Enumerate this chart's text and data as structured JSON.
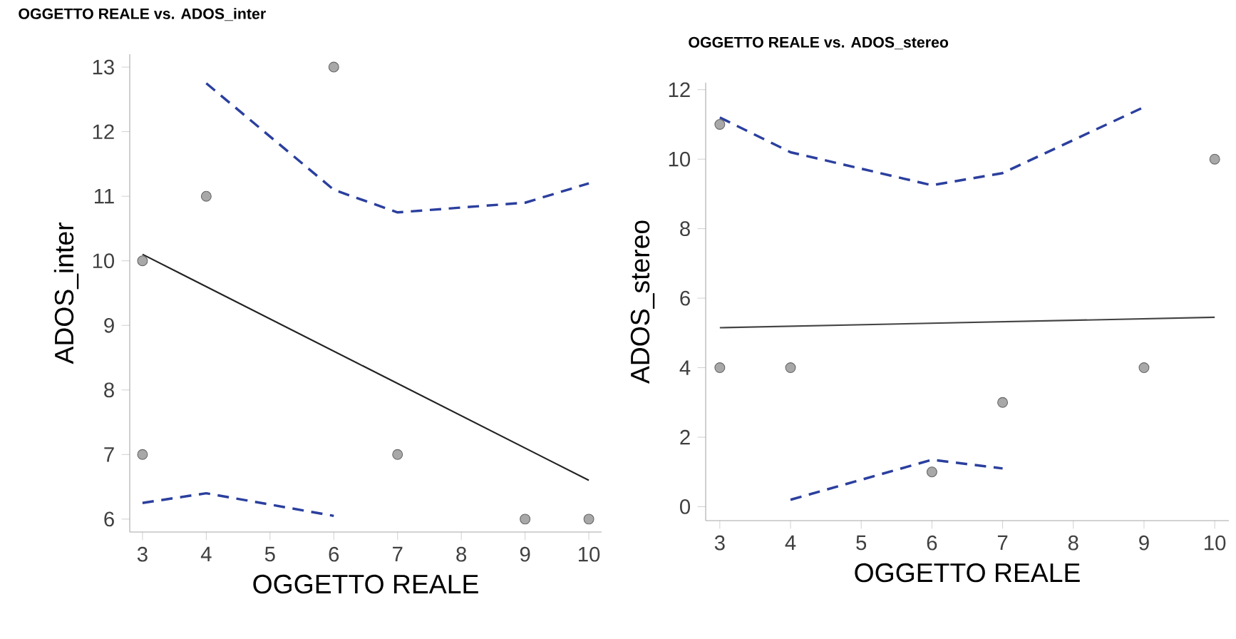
{
  "chart_data": [
    {
      "type": "scatter",
      "title": "OGGETTO REALE vs. ADOS_inter",
      "xlabel": "OGGETTO REALE",
      "ylabel": "ADOS_inter",
      "xlim": [
        2.8,
        10.2
      ],
      "ylim": [
        5.8,
        13.2
      ],
      "xticks": [
        3,
        4,
        5,
        6,
        7,
        8,
        9,
        10
      ],
      "yticks": [
        6,
        7,
        8,
        9,
        10,
        11,
        12,
        13
      ],
      "grid": false,
      "series": [
        {
          "color": "#a8a8a8",
          "marker": "circle",
          "x": [
            3,
            3,
            4,
            6,
            7,
            9,
            10
          ],
          "values": [
            10,
            7,
            11,
            13,
            7,
            6,
            6
          ]
        },
        {
          "type": "line",
          "color": "#222222",
          "marker": "none",
          "line_style": "solid",
          "x": [
            3,
            10
          ],
          "values": [
            10.1,
            6.6
          ]
        },
        {
          "type": "line",
          "color": "#2b3f9e",
          "marker": "none",
          "line_style": "dashed",
          "x": [
            4,
            6,
            7,
            9,
            10
          ],
          "values": [
            12.75,
            11.1,
            10.75,
            10.9,
            11.2
          ]
        },
        {
          "type": "line",
          "color": "#2b3f9e",
          "marker": "none",
          "line_style": "dashed",
          "x": [
            3,
            4,
            6
          ],
          "values": [
            6.25,
            6.4,
            6.05
          ]
        }
      ]
    },
    {
      "type": "scatter",
      "title": "OGGETTO REALE vs. ADOS_stereo",
      "xlabel": "OGGETTO REALE",
      "ylabel": "ADOS_stereo",
      "xlim": [
        2.8,
        10.2
      ],
      "ylim": [
        -0.4,
        12.2
      ],
      "xticks": [
        3,
        4,
        5,
        6,
        7,
        8,
        9,
        10
      ],
      "yticks": [
        0,
        2,
        4,
        6,
        8,
        10,
        12
      ],
      "grid": false,
      "series": [
        {
          "color": "#a8a8a8",
          "marker": "circle",
          "x": [
            3,
            3,
            4,
            6,
            7,
            9,
            10
          ],
          "values": [
            11,
            4,
            4,
            1,
            3,
            4,
            10
          ]
        },
        {
          "type": "line",
          "color": "#444444",
          "marker": "none",
          "line_style": "solid",
          "x": [
            3,
            10
          ],
          "values": [
            5.15,
            5.45
          ]
        },
        {
          "type": "line",
          "color": "#2b3f9e",
          "marker": "none",
          "line_style": "dashed",
          "x": [
            3,
            4,
            6,
            7,
            9
          ],
          "values": [
            11.2,
            10.2,
            9.25,
            9.6,
            11.5
          ]
        },
        {
          "type": "line",
          "color": "#2b3f9e",
          "marker": "none",
          "line_style": "dashed",
          "x": [
            4,
            6,
            7
          ],
          "values": [
            0.2,
            1.35,
            1.1
          ]
        }
      ]
    }
  ]
}
